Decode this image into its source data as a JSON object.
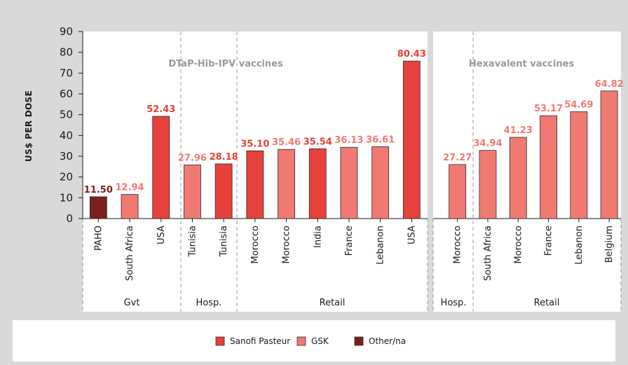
{
  "chart_data": [
    {
      "type": "bar",
      "subtitle": "DTaP-Hib-IPV vaccines",
      "ylabel": "US$ PER DOSE",
      "ylim": [
        0,
        90
      ],
      "yticks": [
        0,
        10,
        20,
        30,
        40,
        50,
        60,
        70,
        80,
        90
      ],
      "grid": false,
      "groups": [
        "Gvt",
        "Hosp.",
        "Retail"
      ],
      "categories": [
        "PAHO",
        "South Africa",
        "USA",
        "Tunisia",
        "Tunisia",
        "Morocco",
        "Morocco",
        "India",
        "France",
        "Lebanon",
        "USA"
      ],
      "category_groups": [
        "Gvt",
        "Gvt",
        "Gvt",
        "Hosp.",
        "Hosp.",
        "Retail",
        "Retail",
        "Retail",
        "Retail",
        "Retail",
        "Retail"
      ],
      "values": [
        10.5,
        11.6,
        49.2,
        25.8,
        26.3,
        32.6,
        33.3,
        33.6,
        34.3,
        34.6,
        75.8
      ],
      "value_labels": [
        "11.50",
        "12.94",
        "52.43",
        "27.96",
        "28.18",
        "35.10",
        "35.46",
        "35.54",
        "36.13",
        "36.61",
        "80.43"
      ],
      "series_by_bar": [
        "Other/na",
        "GSK",
        "Sanofi Pasteur",
        "GSK",
        "Sanofi Pasteur",
        "Sanofi Pasteur",
        "GSK",
        "Sanofi Pasteur",
        "GSK",
        "GSK",
        "Sanofi Pasteur"
      ]
    },
    {
      "type": "bar",
      "subtitle": "Hexavalent vaccines",
      "ylim": [
        0,
        90
      ],
      "grid": false,
      "groups": [
        "Hosp.",
        "Retail"
      ],
      "categories": [
        "Morocco",
        "South Africa",
        "Morocco",
        "France",
        "Lebanon",
        "Belgium"
      ],
      "category_groups": [
        "Hosp.",
        "Retail",
        "Retail",
        "Retail",
        "Retail",
        "Retail"
      ],
      "values": [
        26.0,
        32.8,
        39.1,
        49.5,
        51.4,
        61.4
      ],
      "value_labels": [
        "27.27",
        "34.94",
        "41.23",
        "53.17",
        "54.69",
        "64.82"
      ],
      "series_by_bar": [
        "GSK",
        "GSK",
        "GSK",
        "GSK",
        "GSK",
        "GSK"
      ]
    }
  ],
  "legend": {
    "position": "bottom-center",
    "items": [
      {
        "name": "Sanofi Pasteur",
        "color": "#e8403a"
      },
      {
        "name": "GSK",
        "color": "#f07a72"
      },
      {
        "name": "Other/na",
        "color": "#7b1f1a"
      }
    ]
  },
  "series_colors": {
    "Sanofi Pasteur": "#e8403a",
    "GSK": "#f07a72",
    "Other/na": "#7b1f1a"
  },
  "label_colors": {
    "Sanofi Pasteur": "#e8403a",
    "GSK": "#f07a72",
    "Other/na": "#7b1f1a"
  }
}
